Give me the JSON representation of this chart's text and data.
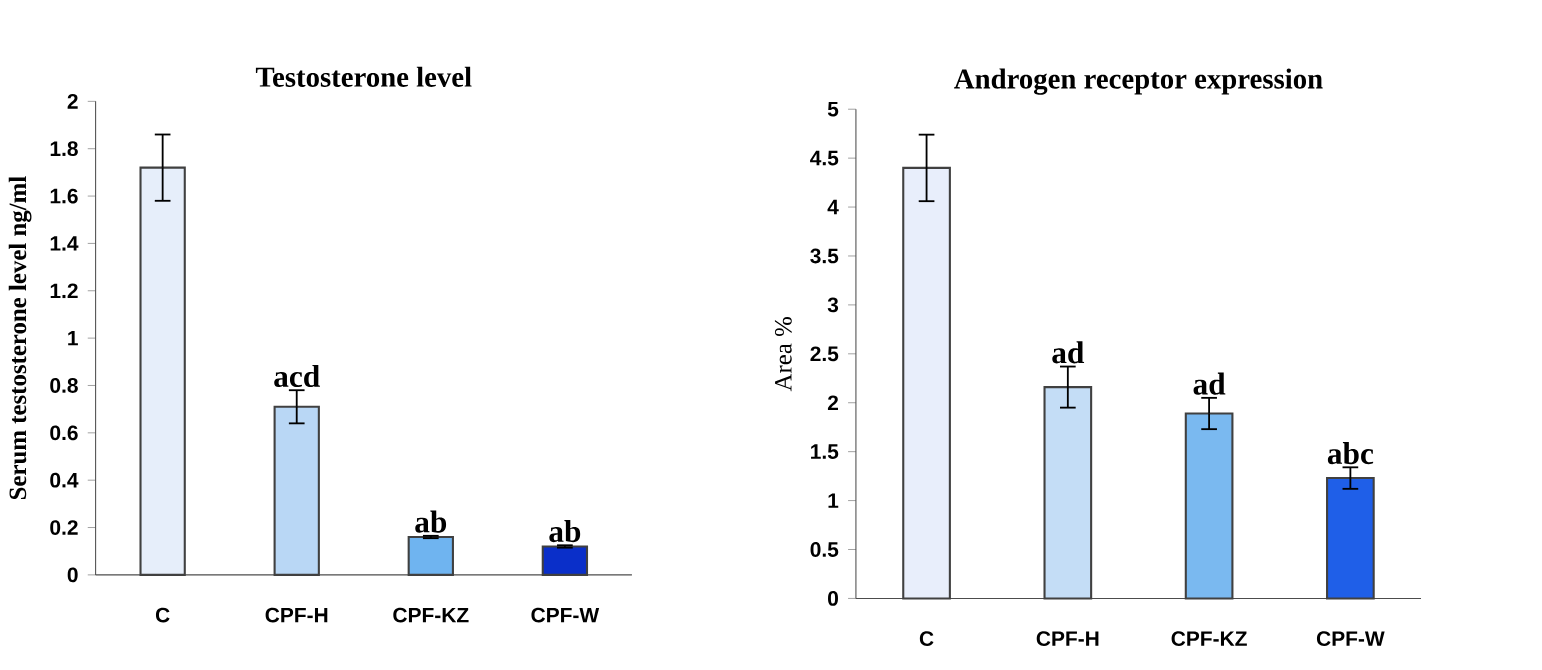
{
  "chart_data": [
    {
      "type": "bar",
      "title": "Testosterone level",
      "ylabel": "Serum testosterone level ng/ml",
      "categories": [
        "C",
        "CPF-H",
        "CPF-KZ",
        "CPF-W"
      ],
      "values": [
        1.72,
        0.71,
        0.16,
        0.12
      ],
      "errors": [
        0.14,
        0.07,
        0.005,
        0.005
      ],
      "colors": [
        "#e6eefa",
        "#b9d7f5",
        "#6fb4f0",
        "#0a2fc9"
      ],
      "ylim": [
        0,
        2
      ],
      "yticks": [
        0,
        0.2,
        0.4,
        0.6,
        0.8,
        1,
        1.2,
        1.4,
        1.6,
        1.8,
        2
      ],
      "grid": false,
      "annotations": [
        {
          "text": "acd",
          "x": "CPF-H",
          "y": 0.78
        },
        {
          "text": "ab",
          "x": "CPF-KZ",
          "y": 0.165
        },
        {
          "text": "ab",
          "x": "CPF-W",
          "y": 0.125
        }
      ]
    },
    {
      "type": "bar",
      "title": "Androgen receptor expression",
      "ylabel": "Area %",
      "categories": [
        "C",
        "CPF-H",
        "CPF-KZ",
        "CPF-W"
      ],
      "values": [
        4.4,
        2.16,
        1.89,
        1.23
      ],
      "errors": [
        0.34,
        0.21,
        0.16,
        0.11
      ],
      "colors": [
        "#e8eefb",
        "#c4ddf6",
        "#7ab9f0",
        "#1f5fe8"
      ],
      "ylim": [
        0,
        5
      ],
      "yticks": [
        0,
        0.5,
        1,
        1.5,
        2,
        2.5,
        3,
        3.5,
        4,
        4.5,
        5
      ],
      "grid": false,
      "annotations": [
        {
          "text": "ad",
          "x": "CPF-H",
          "y": 2.37
        },
        {
          "text": "ad",
          "x": "CPF-KZ",
          "y": 2.05
        },
        {
          "text": "abc",
          "x": "CPF-W",
          "y": 1.34
        }
      ]
    }
  ]
}
